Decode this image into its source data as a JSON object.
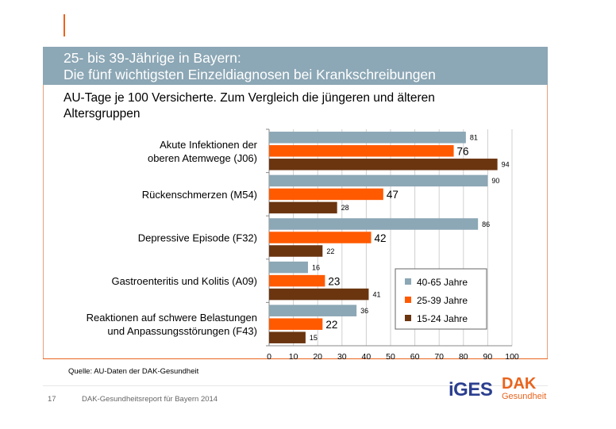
{
  "header": {
    "title_line1": "25- bis 39-Jährige in Bayern:",
    "title_line2": "Die fünf wichtigsten Einzeldiagnosen bei Krankschreibungen"
  },
  "subtitle": {
    "line1": "AU-Tage je 100 Versicherte. Zum Vergleich die jüngeren und älteren",
    "line2": "Altersgruppen"
  },
  "colors": {
    "accent": "#e8641e",
    "band": "#8ca7b5",
    "series_40_65": "#8ca7b5",
    "series_25_39": "#ff5a00",
    "series_15_24": "#6b3510"
  },
  "chart_data": {
    "type": "bar",
    "orientation": "horizontal",
    "categories": [
      [
        "Akute Infektionen der",
        "oberen Atemwege (J06)"
      ],
      [
        "Rückenschmerzen (M54)"
      ],
      [
        "Depressive Episode (F32)"
      ],
      [
        "Gastroenteritis und Kolitis (A09)"
      ],
      [
        "Reaktionen auf schwere Belastungen",
        "und Anpassungsstörungen (F43)"
      ]
    ],
    "series": [
      {
        "name": "40-65 Jahre",
        "color": "#8ca7b5",
        "values": [
          81,
          90,
          86,
          16,
          36
        ]
      },
      {
        "name": "25-39 Jahre",
        "color": "#ff5a00",
        "values": [
          76,
          47,
          42,
          23,
          22
        ]
      },
      {
        "name": "15-24 Jahre",
        "color": "#6b3510",
        "values": [
          94,
          28,
          22,
          41,
          15
        ]
      }
    ],
    "highlight_series": "25-39 Jahre",
    "xlim": [
      0,
      100
    ],
    "xticks": [
      "0",
      "10",
      "20",
      "30",
      "40",
      "50",
      "60",
      "70",
      "80",
      "90",
      "100"
    ],
    "grid": true,
    "legend_position": "bottom-right"
  },
  "footer": {
    "source": "Quelle: AU-Daten der DAK-Gesundheit",
    "page_number": "17",
    "report": "DAK-Gesundheitsreport für Bayern 2014",
    "logo_iges_main": "iGES",
    "logo_dak_main": "DAK",
    "logo_dak_sub": "Gesundheit"
  }
}
